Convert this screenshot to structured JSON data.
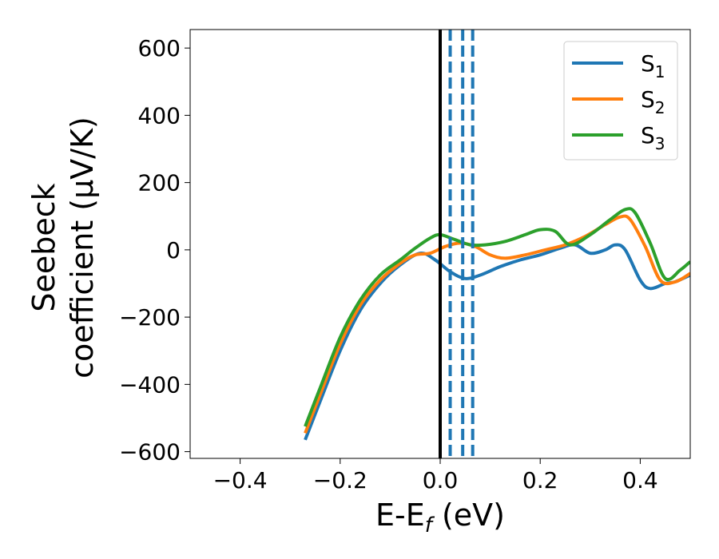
{
  "chart_data": {
    "type": "line",
    "xlabel": "E-E_f (eV)",
    "ylabel_line1": "Seebeck",
    "ylabel_line2": "coefficient  (μV/K)",
    "xlim": [
      -0.5,
      0.5
    ],
    "ylim": [
      -620,
      655
    ],
    "x_ticks": [
      -0.4,
      -0.2,
      0.0,
      0.2,
      0.4
    ],
    "x_tick_labels": [
      "−0.4",
      "−0.2",
      "0.0",
      "0.2",
      "0.4"
    ],
    "y_ticks": [
      600,
      400,
      200,
      0,
      -200,
      -400,
      -600
    ],
    "y_tick_labels": [
      "600",
      "400",
      "200",
      "0",
      "−200",
      "−400",
      "−600"
    ],
    "grid": false,
    "legend_position": "top-right",
    "vertical_lines": [
      {
        "x": 0.0,
        "style": "solid",
        "color": "#000000"
      },
      {
        "x": 0.02,
        "style": "dashed",
        "color": "#1f77b4"
      },
      {
        "x": 0.045,
        "style": "dashed",
        "color": "#1f77b4"
      },
      {
        "x": 0.065,
        "style": "dashed",
        "color": "#1f77b4"
      }
    ],
    "series": [
      {
        "name": "S1",
        "label_base": "S",
        "label_sub": "1",
        "color": "#1f77b4",
        "x": [
          -0.27,
          -0.24,
          -0.2,
          -0.16,
          -0.12,
          -0.08,
          -0.04,
          -0.01,
          0.02,
          0.05,
          0.08,
          0.12,
          0.16,
          0.2,
          0.24,
          0.27,
          0.3,
          0.33,
          0.35,
          0.37,
          0.4,
          0.42,
          0.45,
          0.47,
          0.5
        ],
        "y": [
          -565,
          -450,
          -300,
          -180,
          -100,
          -45,
          -10,
          -30,
          -65,
          -85,
          -75,
          -50,
          -30,
          -15,
          5,
          15,
          -10,
          0,
          15,
          0,
          -90,
          -115,
          -100,
          -95,
          -75
        ]
      },
      {
        "name": "S2",
        "label_base": "S",
        "label_sub": "2",
        "color": "#ff7f0e",
        "x": [
          -0.27,
          -0.24,
          -0.2,
          -0.16,
          -0.12,
          -0.08,
          -0.05,
          -0.02,
          0.01,
          0.04,
          0.07,
          0.1,
          0.13,
          0.17,
          0.21,
          0.25,
          0.29,
          0.33,
          0.36,
          0.38,
          0.41,
          0.44,
          0.47,
          0.5
        ],
        "y": [
          -545,
          -430,
          -280,
          -165,
          -90,
          -40,
          -15,
          -10,
          10,
          20,
          10,
          -15,
          -25,
          -15,
          0,
          15,
          40,
          75,
          98,
          90,
          10,
          -90,
          -95,
          -70
        ]
      },
      {
        "name": "S3",
        "label_base": "S",
        "label_sub": "3",
        "color": "#2ca02c",
        "x": [
          -0.27,
          -0.24,
          -0.2,
          -0.16,
          -0.12,
          -0.08,
          -0.05,
          -0.02,
          0.0,
          0.03,
          0.06,
          0.09,
          0.13,
          0.17,
          0.2,
          0.23,
          0.26,
          0.3,
          0.34,
          0.37,
          0.39,
          0.42,
          0.45,
          0.48,
          0.5
        ],
        "y": [
          -525,
          -410,
          -260,
          -150,
          -75,
          -30,
          5,
          35,
          45,
          30,
          15,
          15,
          25,
          45,
          60,
          55,
          15,
          45,
          90,
          120,
          110,
          20,
          -85,
          -60,
          -35
        ]
      }
    ]
  }
}
